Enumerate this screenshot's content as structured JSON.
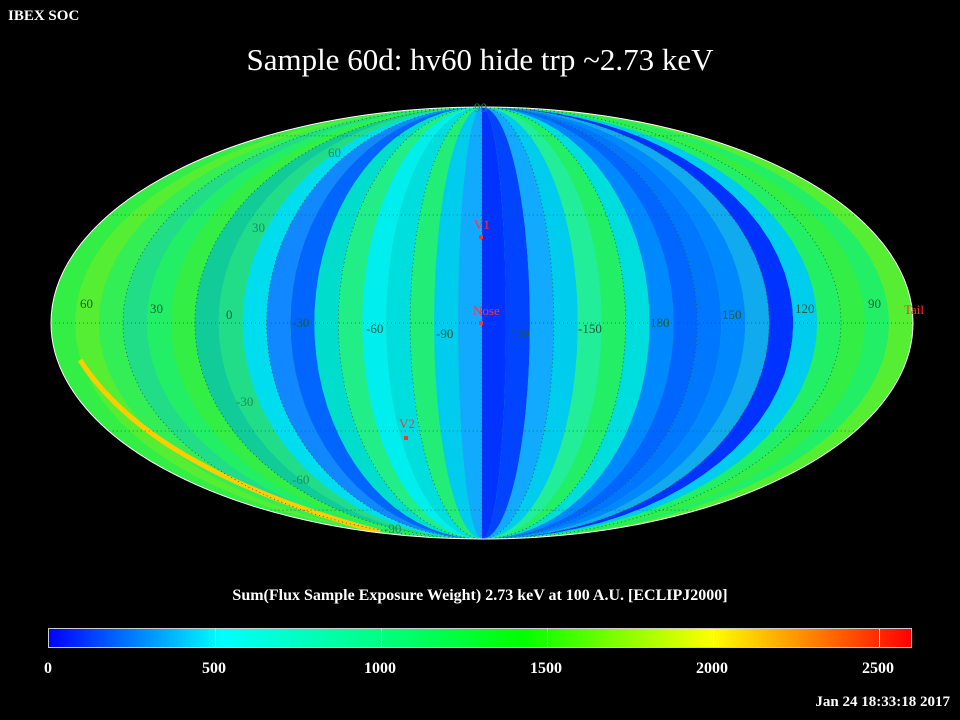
{
  "header": {
    "org": "IBEX SOC",
    "title": "Sample 60d: hv60 hide trp ~2.73 keV"
  },
  "map": {
    "projection": "mollweide",
    "graticule_labels": {
      "latitude": [
        "90",
        "60",
        "30",
        "-30",
        "-60",
        "-90"
      ],
      "longitude": [
        "60",
        "30",
        "0",
        "-30",
        "-60",
        "-90",
        "120",
        "-150",
        "180",
        "150",
        "120",
        "90"
      ]
    },
    "markers": [
      {
        "label": "V1",
        "color": "#ff3333"
      },
      {
        "label": "Nose",
        "color": "#ff3333"
      },
      {
        "label": "V2",
        "color": "#ff3333"
      },
      {
        "label": "Tail",
        "color": "#ff3333"
      }
    ]
  },
  "colorbar": {
    "title": "Sum(Flux Sample Exposure Weight)  2.73 keV at 100 A.U. [ECLIPJ2000]",
    "min": 0,
    "max": 2600,
    "ticks": [
      "0",
      "500",
      "1000",
      "1500",
      "2000",
      "2500"
    ]
  },
  "footer": {
    "timestamp": "Jan 24 18:33:18 2017"
  }
}
